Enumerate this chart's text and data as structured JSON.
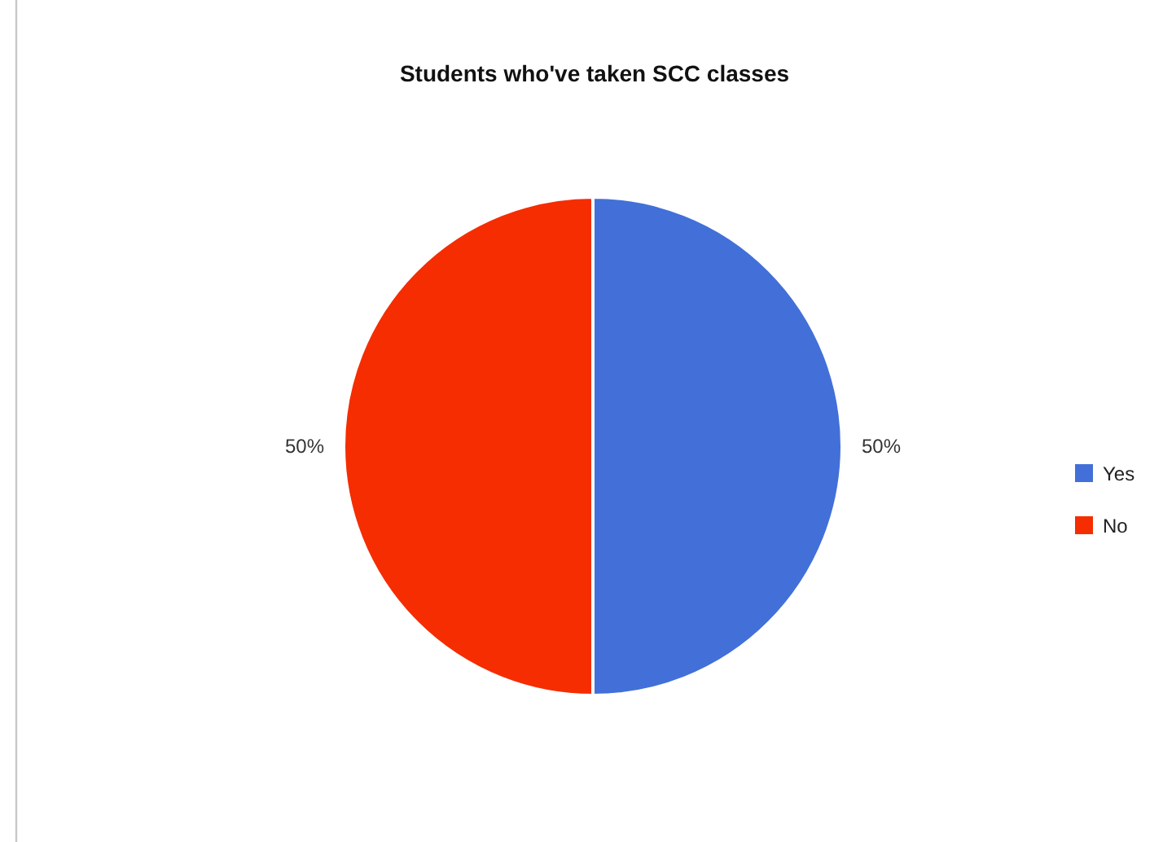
{
  "chart_data": {
    "type": "pie",
    "title": "Students who've taken SCC classes",
    "categories": [
      "Yes",
      "No"
    ],
    "values": [
      50,
      50
    ],
    "colors": [
      "#4270d8",
      "#f52d00"
    ],
    "value_labels": [
      "50%",
      "50%"
    ],
    "legend": "right"
  }
}
